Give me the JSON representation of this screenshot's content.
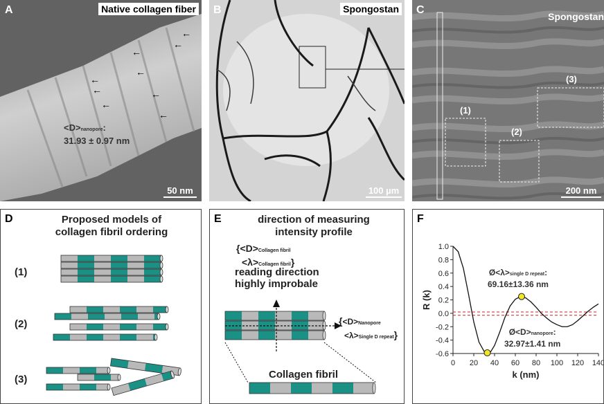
{
  "panels": {
    "A": {
      "letter": "A",
      "title": "Native collagen fiber",
      "ann_line1": "<D>",
      "ann_sub": "nanopore",
      "ann_colon": ":",
      "ann_line2": "31.93 ± 0.97 nm",
      "scale": "50 nm"
    },
    "B": {
      "letter": "B",
      "title": "Spongostan",
      "scale": "100 µm"
    },
    "C": {
      "letter": "C",
      "title": "Spongostan",
      "r1": "(1)",
      "r2": "(2)",
      "r3": "(3)",
      "scale": "200 nm"
    },
    "D": {
      "letter": "D",
      "title_line1": "Proposed models of",
      "title_line2": "collagen fibril ordering",
      "m1": "(1)",
      "m2": "(2)",
      "m3": "(3)"
    },
    "E": {
      "letter": "E",
      "title_line1": "direction of measuring",
      "title_line2": "intensity profile",
      "top_brace": "{",
      "top_d": "<D>",
      "top_d_sub": "Collagen fibril",
      "top_l": "<λ>",
      "top_l_sub": "Collagen fibril",
      "top_close": "}",
      "reading1": "reading direction",
      "reading2": "highly improbale",
      "right_brace": "{",
      "right_d": "<D>",
      "right_d_sub": "Nanopore",
      "right_l": "<λ>",
      "right_l_sub": "Single D repeat",
      "right_close": "}",
      "fibril": "Collagen fibril"
    },
    "F": {
      "letter": "F",
      "ann1_pre": "Ø<λ>",
      "ann1_sub": "single D repeat",
      "ann1_colon": ":",
      "ann1_val": "69.16±13.36 nm",
      "ann2_pre": "Ø<D>",
      "ann2_sub": "nanopore",
      "ann2_colon": ":",
      "ann2_val": "32.97±1.41 nm"
    }
  },
  "colors": {
    "teal": "#1b9085",
    "gray": "#b9b9b9",
    "curve": "#111111",
    "threshold": "#cc2222",
    "marker": "#f3e626"
  },
  "chart_data": {
    "type": "line",
    "xlabel": "k (nm)",
    "ylabel": "R (k)",
    "xlim": [
      0,
      140
    ],
    "ylim": [
      -0.6,
      1.0
    ],
    "xticks": [
      0,
      20,
      40,
      60,
      80,
      100,
      120,
      140
    ],
    "yticks": [
      1.0,
      0.8,
      0.6,
      0.4,
      0.2,
      0.0,
      -0.2,
      -0.4,
      -0.6
    ],
    "series": [
      {
        "x": [
          0,
          5,
          10,
          15,
          20,
          25,
          30,
          33,
          36,
          40,
          45,
          50,
          55,
          60,
          65,
          70,
          75,
          80,
          85,
          90,
          95,
          100,
          105,
          110,
          115,
          120,
          125,
          130,
          135,
          140
        ],
        "y": [
          1.0,
          0.92,
          0.67,
          0.28,
          -0.13,
          -0.43,
          -0.57,
          -0.6,
          -0.58,
          -0.48,
          -0.28,
          -0.06,
          0.11,
          0.21,
          0.25,
          0.23,
          0.17,
          0.09,
          0.0,
          -0.07,
          -0.13,
          -0.17,
          -0.2,
          -0.2,
          -0.17,
          -0.11,
          -0.04,
          0.03,
          0.09,
          0.14
        ]
      }
    ],
    "thresholds": [
      0.02,
      -0.03
    ],
    "markers": [
      {
        "x": 33,
        "y": -0.59
      },
      {
        "x": 66,
        "y": 0.25
      }
    ]
  }
}
